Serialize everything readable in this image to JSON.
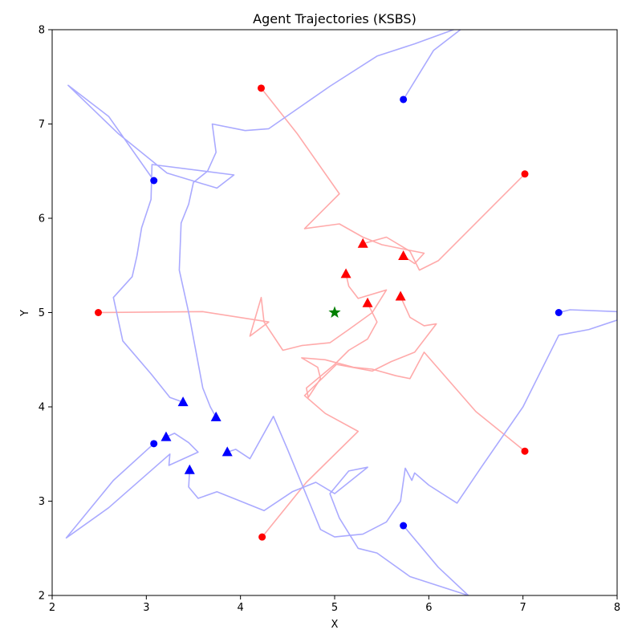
{
  "chart_data": {
    "type": "line",
    "title": "Agent Trajectories (KSBS)",
    "xlabel": "X",
    "ylabel": "Y",
    "xlim": [
      2,
      8
    ],
    "ylim": [
      2,
      8
    ],
    "xticks": [
      "2",
      "3",
      "4",
      "5",
      "6",
      "7",
      "8"
    ],
    "yticks": [
      "2",
      "3",
      "4",
      "5",
      "6",
      "7",
      "8"
    ],
    "grid": false,
    "legend": "none",
    "colors": {
      "red_team": "#ff0000",
      "red_path": "#ffaaaa",
      "blue_team": "#0000ff",
      "blue_path": "#aaaaff",
      "goal": "#008000"
    },
    "goal": {
      "x": 5.0,
      "y": 5.0,
      "marker": "star"
    },
    "series": [
      {
        "team": "red",
        "start": [
          4.22,
          7.38
        ],
        "end": [
          5.73,
          5.6
        ],
        "path": [
          [
            4.22,
            7.38
          ],
          [
            4.6,
            6.9
          ],
          [
            5.05,
            6.26
          ],
          [
            4.68,
            5.89
          ],
          [
            5.05,
            5.94
          ],
          [
            5.3,
            5.8
          ],
          [
            5.5,
            5.72
          ],
          [
            5.7,
            5.68
          ],
          [
            5.95,
            5.63
          ],
          [
            5.85,
            5.52
          ],
          [
            5.73,
            5.6
          ]
        ]
      },
      {
        "team": "red",
        "start": [
          7.02,
          6.47
        ],
        "end": [
          5.3,
          5.73
        ],
        "path": [
          [
            7.02,
            6.47
          ],
          [
            6.5,
            5.95
          ],
          [
            6.1,
            5.55
          ],
          [
            5.9,
            5.45
          ],
          [
            5.8,
            5.65
          ],
          [
            5.55,
            5.8
          ],
          [
            5.3,
            5.73
          ]
        ]
      },
      {
        "team": "red",
        "start": [
          2.49,
          5.0
        ],
        "end": [
          5.12,
          5.41
        ],
        "path": [
          [
            2.49,
            5.0
          ],
          [
            3.6,
            5.01
          ],
          [
            4.3,
            4.9
          ],
          [
            4.1,
            4.75
          ],
          [
            4.22,
            5.16
          ],
          [
            4.25,
            4.9
          ],
          [
            4.45,
            4.6
          ],
          [
            4.65,
            4.65
          ],
          [
            4.95,
            4.68
          ],
          [
            5.15,
            4.82
          ],
          [
            5.4,
            5.0
          ],
          [
            5.55,
            5.24
          ],
          [
            5.25,
            5.15
          ],
          [
            5.15,
            5.28
          ],
          [
            5.12,
            5.41
          ]
        ]
      },
      {
        "team": "red",
        "start": [
          7.02,
          3.53
        ],
        "end": [
          5.35,
          5.1
        ],
        "path": [
          [
            7.02,
            3.53
          ],
          [
            6.5,
            3.95
          ],
          [
            5.95,
            4.58
          ],
          [
            5.8,
            4.3
          ],
          [
            5.65,
            4.33
          ],
          [
            5.4,
            4.4
          ],
          [
            5.2,
            4.42
          ],
          [
            4.9,
            4.5
          ],
          [
            4.65,
            4.52
          ],
          [
            4.82,
            4.42
          ],
          [
            4.85,
            4.3
          ],
          [
            4.72,
            4.1
          ],
          [
            4.7,
            4.2
          ],
          [
            5.0,
            4.45
          ],
          [
            5.15,
            4.6
          ],
          [
            5.35,
            4.72
          ],
          [
            5.45,
            4.9
          ],
          [
            5.4,
            5.0
          ],
          [
            5.35,
            5.1
          ]
        ]
      },
      {
        "team": "red",
        "start": [
          4.23,
          2.62
        ],
        "end": [
          5.7,
          5.17
        ],
        "path": [
          [
            4.23,
            2.62
          ],
          [
            4.7,
            3.2
          ],
          [
            5.25,
            3.74
          ],
          [
            4.9,
            3.93
          ],
          [
            4.68,
            4.12
          ],
          [
            5.02,
            4.45
          ],
          [
            5.4,
            4.38
          ],
          [
            5.6,
            4.48
          ],
          [
            5.85,
            4.58
          ],
          [
            6.08,
            4.88
          ],
          [
            5.95,
            4.86
          ],
          [
            5.8,
            4.95
          ],
          [
            5.7,
            5.17
          ]
        ]
      },
      {
        "team": "blue",
        "start": [
          5.73,
          7.26
        ],
        "end": [
          3.74,
          3.89
        ],
        "path": [
          [
            5.73,
            7.26
          ],
          [
            6.05,
            7.78
          ],
          [
            6.4,
            8.05
          ],
          [
            5.85,
            7.85
          ],
          [
            5.45,
            7.72
          ],
          [
            4.95,
            7.4
          ],
          [
            4.3,
            6.95
          ],
          [
            4.05,
            6.93
          ],
          [
            3.7,
            7.0
          ],
          [
            3.74,
            6.7
          ],
          [
            3.65,
            6.5
          ],
          [
            3.5,
            6.38
          ],
          [
            3.45,
            6.15
          ],
          [
            3.37,
            5.95
          ],
          [
            3.35,
            5.45
          ],
          [
            3.45,
            5.0
          ],
          [
            3.6,
            4.2
          ],
          [
            3.68,
            4.0
          ],
          [
            3.74,
            3.89
          ]
        ]
      },
      {
        "team": "blue",
        "start": [
          3.08,
          6.4
        ],
        "end": [
          3.39,
          4.05
        ],
        "path": [
          [
            3.08,
            6.4
          ],
          [
            2.6,
            7.08
          ],
          [
            2.17,
            7.41
          ],
          [
            2.7,
            6.9
          ],
          [
            3.22,
            6.48
          ],
          [
            3.75,
            6.32
          ],
          [
            3.93,
            6.46
          ],
          [
            3.06,
            6.57
          ],
          [
            3.05,
            6.2
          ],
          [
            2.95,
            5.9
          ],
          [
            2.9,
            5.6
          ],
          [
            2.85,
            5.38
          ],
          [
            2.65,
            5.16
          ],
          [
            2.75,
            4.7
          ],
          [
            3.05,
            4.35
          ],
          [
            3.25,
            4.1
          ],
          [
            3.39,
            4.05
          ]
        ]
      },
      {
        "team": "blue",
        "start": [
          7.38,
          5.0
        ],
        "end": [
          3.86,
          3.52
        ],
        "path": [
          [
            7.38,
            5.0
          ],
          [
            7.5,
            5.03
          ],
          [
            8.0,
            5.01
          ],
          [
            8.0,
            4.92
          ],
          [
            7.7,
            4.82
          ],
          [
            7.38,
            4.76
          ],
          [
            7.0,
            4.0
          ],
          [
            6.55,
            3.35
          ],
          [
            6.3,
            2.98
          ],
          [
            6.0,
            3.17
          ],
          [
            5.85,
            3.3
          ],
          [
            5.82,
            3.22
          ],
          [
            5.75,
            3.35
          ],
          [
            5.7,
            3.0
          ],
          [
            5.55,
            2.78
          ],
          [
            5.3,
            2.65
          ],
          [
            5.0,
            2.62
          ],
          [
            4.85,
            2.7
          ],
          [
            4.5,
            3.55
          ],
          [
            4.35,
            3.9
          ],
          [
            4.1,
            3.45
          ],
          [
            3.95,
            3.55
          ],
          [
            3.86,
            3.52
          ]
        ]
      },
      {
        "team": "blue",
        "start": [
          3.08,
          3.61
        ],
        "end": [
          3.21,
          3.68
        ],
        "path": [
          [
            3.08,
            3.61
          ],
          [
            2.65,
            3.22
          ],
          [
            2.15,
            2.61
          ],
          [
            2.6,
            2.93
          ],
          [
            3.25,
            3.5
          ],
          [
            3.24,
            3.38
          ],
          [
            3.55,
            3.52
          ],
          [
            3.45,
            3.62
          ],
          [
            3.3,
            3.72
          ],
          [
            3.21,
            3.68
          ]
        ]
      },
      {
        "team": "blue",
        "start": [
          5.73,
          2.74
        ],
        "end": [
          3.46,
          3.33
        ],
        "path": [
          [
            5.73,
            2.74
          ],
          [
            6.1,
            2.3
          ],
          [
            6.42,
            2.0
          ],
          [
            5.8,
            2.2
          ],
          [
            5.45,
            2.45
          ],
          [
            5.25,
            2.5
          ],
          [
            5.05,
            2.82
          ],
          [
            4.95,
            3.08
          ],
          [
            5.15,
            3.32
          ],
          [
            5.35,
            3.36
          ],
          [
            5.0,
            3.08
          ],
          [
            4.8,
            3.2
          ],
          [
            4.55,
            3.1
          ],
          [
            4.25,
            2.9
          ],
          [
            3.95,
            3.02
          ],
          [
            3.75,
            3.1
          ],
          [
            3.55,
            3.03
          ],
          [
            3.45,
            3.15
          ],
          [
            3.46,
            3.33
          ]
        ]
      }
    ]
  }
}
